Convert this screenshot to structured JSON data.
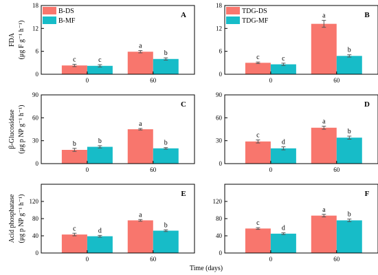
{
  "x_axis_title": "Time (days)",
  "colors": {
    "ds": "#f8766d",
    "mf": "#17bcc8",
    "error_bar": "#555555"
  },
  "legends": [
    {
      "entries": [
        "B-DS",
        "B-MF"
      ]
    },
    {
      "entries": [
        "TDG-DS",
        "TDG-MF"
      ]
    }
  ],
  "chart_data": [
    {
      "type": "bar",
      "panel": "A",
      "categories": [
        "0",
        "60"
      ],
      "ylim": [
        0,
        18
      ],
      "yticks": [
        0,
        6,
        12,
        18
      ],
      "ylabel": [
        "FDA",
        "(μg F g⁻¹ h⁻¹)"
      ],
      "legend": 0,
      "series": [
        {
          "name": "B-DS",
          "values": [
            2.3,
            5.9
          ],
          "errors": [
            0.3,
            0.3
          ],
          "letters": [
            "c",
            "a"
          ]
        },
        {
          "name": "B-MF",
          "values": [
            2.2,
            4.0
          ],
          "errors": [
            0.3,
            0.3
          ],
          "letters": [
            "c",
            "b"
          ]
        }
      ]
    },
    {
      "type": "bar",
      "panel": "B",
      "categories": [
        "0",
        "60"
      ],
      "ylim": [
        0,
        18
      ],
      "yticks": [
        0,
        6,
        12,
        18
      ],
      "legend": 1,
      "series": [
        {
          "name": "TDG-DS",
          "values": [
            3.0,
            13.2
          ],
          "errors": [
            0.2,
            0.9
          ],
          "letters": [
            "c",
            "a"
          ]
        },
        {
          "name": "TDG-MF",
          "values": [
            2.6,
            4.8
          ],
          "errors": [
            0.3,
            0.3
          ],
          "letters": [
            "c",
            "b"
          ]
        }
      ]
    },
    {
      "type": "bar",
      "panel": "C",
      "categories": [
        "0",
        "60"
      ],
      "ylim": [
        0,
        90
      ],
      "yticks": [
        0,
        30,
        60,
        90
      ],
      "ylabel": [
        "β-Glucosidase",
        "(μg p NP g⁻¹ h⁻¹)"
      ],
      "series": [
        {
          "name": "B-DS",
          "values": [
            18,
            45
          ],
          "errors": [
            2,
            1
          ],
          "letters": [
            "b",
            "a"
          ]
        },
        {
          "name": "B-MF",
          "values": [
            22,
            20
          ],
          "errors": [
            1.5,
            1
          ],
          "letters": [
            "b",
            "b"
          ]
        }
      ]
    },
    {
      "type": "bar",
      "panel": "D",
      "categories": [
        "0",
        "60"
      ],
      "ylim": [
        0,
        90
      ],
      "yticks": [
        0,
        30,
        60,
        90
      ],
      "series": [
        {
          "name": "TDG-DS",
          "values": [
            29,
            47
          ],
          "errors": [
            2,
            2
          ],
          "letters": [
            "c",
            "a"
          ]
        },
        {
          "name": "TDG-MF",
          "values": [
            20,
            34
          ],
          "errors": [
            2,
            2
          ],
          "letters": [
            "d",
            "b"
          ]
        }
      ]
    },
    {
      "type": "bar",
      "panel": "E",
      "categories": [
        "0",
        "60"
      ],
      "ylim": [
        0,
        160
      ],
      "yticks": [
        0,
        40,
        80,
        120
      ],
      "ylabel": [
        "Acid phosphatase",
        "(μg p NP g⁻¹ h⁻¹)"
      ],
      "series": [
        {
          "name": "B-DS",
          "values": [
            43,
            76
          ],
          "errors": [
            3,
            2
          ],
          "letters": [
            "c",
            "a"
          ]
        },
        {
          "name": "B-MF",
          "values": [
            39,
            52
          ],
          "errors": [
            2,
            2
          ],
          "letters": [
            "d",
            "b"
          ]
        }
      ]
    },
    {
      "type": "bar",
      "panel": "F",
      "categories": [
        "0",
        "60"
      ],
      "ylim": [
        0,
        160
      ],
      "yticks": [
        0,
        40,
        80,
        120
      ],
      "series": [
        {
          "name": "TDG-DS",
          "values": [
            57,
            87
          ],
          "errors": [
            2,
            3
          ],
          "letters": [
            "c",
            "a"
          ]
        },
        {
          "name": "TDG-MF",
          "values": [
            45,
            76
          ],
          "errors": [
            2,
            3
          ],
          "letters": [
            "d",
            "b"
          ]
        }
      ]
    }
  ]
}
